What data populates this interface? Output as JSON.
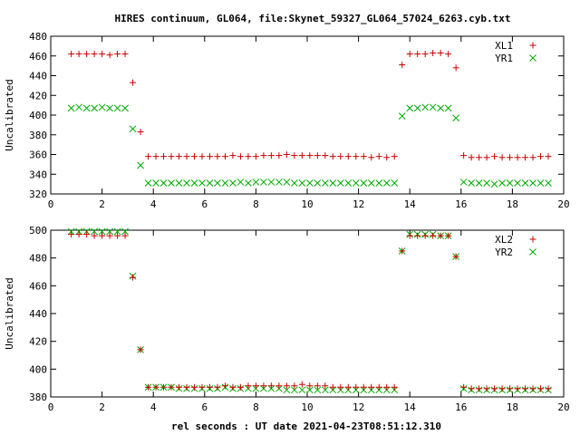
{
  "chart_data": [
    {
      "type": "scatter",
      "title": "HIRES continuum, GL064, file:Skynet_59327_GL064_57024_6263.cyb.txt",
      "xlabel": "",
      "ylabel": "Uncalibrated",
      "xlim": [
        0,
        20
      ],
      "ylim": [
        320,
        480
      ],
      "xticks": [
        "0",
        "2",
        "4",
        "6",
        "8",
        "10",
        "12",
        "14",
        "16",
        "18",
        "20"
      ],
      "yticks": [
        "320",
        "340",
        "360",
        "380",
        "400",
        "420",
        "440",
        "460",
        "480"
      ],
      "grid": false,
      "legend_position": "top-right",
      "series": [
        {
          "name": "XL1",
          "color": "#cc0000",
          "marker": "plus",
          "x": [
            0.8,
            1.1,
            1.4,
            1.7,
            2.0,
            2.3,
            2.6,
            2.9,
            3.2,
            3.5,
            3.8,
            4.1,
            4.4,
            4.7,
            5.0,
            5.3,
            5.6,
            5.9,
            6.2,
            6.5,
            6.8,
            7.1,
            7.4,
            7.7,
            8.0,
            8.3,
            8.6,
            8.9,
            9.2,
            9.5,
            9.8,
            10.1,
            10.4,
            10.7,
            11.0,
            11.3,
            11.6,
            11.9,
            12.2,
            12.5,
            12.8,
            13.1,
            13.4,
            13.7,
            14.0,
            14.3,
            14.6,
            14.9,
            15.2,
            15.5,
            15.8,
            16.1,
            16.4,
            16.7,
            17.0,
            17.3,
            17.6,
            17.9,
            18.2,
            18.5,
            18.8,
            19.1,
            19.4
          ],
          "y": [
            462,
            462,
            462,
            462,
            462,
            461,
            462,
            462,
            433,
            383,
            358,
            358,
            358,
            358,
            358,
            358,
            358,
            358,
            358,
            358,
            358,
            359,
            358,
            358,
            358,
            359,
            359,
            359,
            360,
            359,
            359,
            359,
            359,
            359,
            358,
            358,
            358,
            358,
            358,
            357,
            358,
            357,
            358,
            451,
            462,
            462,
            462,
            463,
            463,
            462,
            448,
            359,
            357,
            357,
            357,
            358,
            357,
            357,
            357,
            357,
            357,
            358,
            358
          ]
        },
        {
          "name": "YR1",
          "color": "#00aa00",
          "marker": "cross",
          "x": [
            0.8,
            1.1,
            1.4,
            1.7,
            2.0,
            2.3,
            2.6,
            2.9,
            3.2,
            3.5,
            3.8,
            4.1,
            4.4,
            4.7,
            5.0,
            5.3,
            5.6,
            5.9,
            6.2,
            6.5,
            6.8,
            7.1,
            7.4,
            7.7,
            8.0,
            8.3,
            8.6,
            8.9,
            9.2,
            9.5,
            9.8,
            10.1,
            10.4,
            10.7,
            11.0,
            11.3,
            11.6,
            11.9,
            12.2,
            12.5,
            12.8,
            13.1,
            13.4,
            13.7,
            14.0,
            14.3,
            14.6,
            14.9,
            15.2,
            15.5,
            15.8,
            16.1,
            16.4,
            16.7,
            17.0,
            17.3,
            17.6,
            17.9,
            18.2,
            18.5,
            18.8,
            19.1,
            19.4
          ],
          "y": [
            407,
            408,
            407,
            407,
            408,
            407,
            407,
            407,
            386,
            349,
            331,
            331,
            331,
            331,
            331,
            331,
            331,
            331,
            331,
            331,
            331,
            331,
            332,
            331,
            332,
            332,
            332,
            332,
            332,
            331,
            331,
            331,
            331,
            331,
            331,
            331,
            331,
            331,
            331,
            331,
            331,
            331,
            331,
            399,
            407,
            407,
            408,
            408,
            407,
            407,
            397,
            332,
            331,
            331,
            331,
            330,
            331,
            331,
            331,
            331,
            331,
            331,
            331
          ]
        }
      ]
    },
    {
      "type": "scatter",
      "title": "",
      "xlabel": "rel seconds : UT date 2021-04-23T08:51:12.310",
      "ylabel": "Uncalibrated",
      "xlim": [
        0,
        20
      ],
      "ylim": [
        380,
        500
      ],
      "xticks": [
        "0",
        "2",
        "4",
        "6",
        "8",
        "10",
        "12",
        "14",
        "16",
        "18",
        "20"
      ],
      "yticks": [
        "380",
        "400",
        "420",
        "440",
        "460",
        "480",
        "500"
      ],
      "grid": false,
      "legend_position": "top-right",
      "series": [
        {
          "name": "XL2",
          "color": "#cc0000",
          "marker": "plus",
          "x": [
            0.8,
            1.1,
            1.4,
            1.7,
            2.0,
            2.3,
            2.6,
            2.9,
            3.2,
            3.5,
            3.8,
            4.1,
            4.4,
            4.7,
            5.0,
            5.3,
            5.6,
            5.9,
            6.2,
            6.5,
            6.8,
            7.1,
            7.4,
            7.7,
            8.0,
            8.3,
            8.6,
            8.9,
            9.2,
            9.5,
            9.8,
            10.1,
            10.4,
            10.7,
            11.0,
            11.3,
            11.6,
            11.9,
            12.2,
            12.5,
            12.8,
            13.1,
            13.4,
            13.7,
            14.0,
            14.3,
            14.6,
            14.9,
            15.2,
            15.5,
            15.8,
            16.1,
            16.4,
            16.7,
            17.0,
            17.3,
            17.6,
            17.9,
            18.2,
            18.5,
            18.8,
            19.1,
            19.4
          ],
          "y": [
            497,
            497,
            497,
            496,
            496,
            496,
            496,
            496,
            466,
            414,
            387,
            387,
            387,
            387,
            387,
            387,
            387,
            387,
            387,
            387,
            388,
            387,
            387,
            388,
            388,
            388,
            388,
            388,
            388,
            388,
            389,
            388,
            388,
            388,
            387,
            387,
            387,
            387,
            387,
            387,
            387,
            387,
            387,
            485,
            496,
            496,
            496,
            496,
            496,
            496,
            481,
            387,
            386,
            386,
            386,
            386,
            386,
            386,
            386,
            386,
            386,
            386,
            386
          ]
        },
        {
          "name": "YR2",
          "color": "#00aa00",
          "marker": "cross",
          "x": [
            0.8,
            1.1,
            1.4,
            1.7,
            2.0,
            2.3,
            2.6,
            2.9,
            3.2,
            3.5,
            3.8,
            4.1,
            4.4,
            4.7,
            5.0,
            5.3,
            5.6,
            5.9,
            6.2,
            6.5,
            6.8,
            7.1,
            7.4,
            7.7,
            8.0,
            8.3,
            8.6,
            8.9,
            9.2,
            9.5,
            9.8,
            10.1,
            10.4,
            10.7,
            11.0,
            11.3,
            11.6,
            11.9,
            12.2,
            12.5,
            12.8,
            13.1,
            13.4,
            13.7,
            14.0,
            14.3,
            14.6,
            14.9,
            15.2,
            15.5,
            15.8,
            16.1,
            16.4,
            16.7,
            17.0,
            17.3,
            17.6,
            17.9,
            18.2,
            18.5,
            18.8,
            19.1,
            19.4
          ],
          "y": [
            499,
            499,
            499,
            499,
            499,
            499,
            499,
            499,
            467,
            414,
            387,
            387,
            387,
            387,
            386,
            386,
            386,
            386,
            386,
            386,
            387,
            386,
            386,
            386,
            386,
            386,
            386,
            386,
            385,
            385,
            385,
            385,
            385,
            385,
            385,
            385,
            385,
            385,
            385,
            385,
            385,
            385,
            385,
            485,
            497,
            497,
            497,
            497,
            496,
            496,
            481,
            386,
            385,
            385,
            385,
            385,
            385,
            385,
            385,
            385,
            385,
            385,
            385
          ]
        }
      ]
    }
  ]
}
